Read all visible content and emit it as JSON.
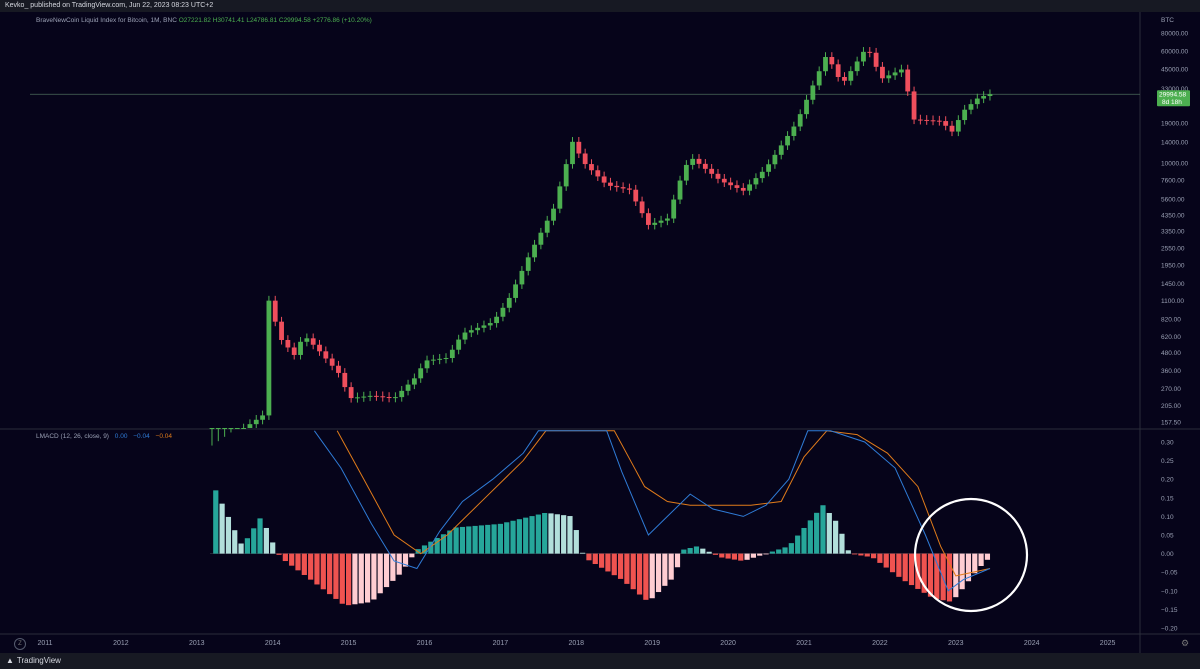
{
  "header": {
    "publisher": "Kevko_ published on TradingView.com, Jun 22, 2023 08:23 UTC+2"
  },
  "legend": {
    "symbol": "BraveNewCoin Liquid Index for Bitcoin, 1M, BNC",
    "open": "O27221.82",
    "high": "H30741.41",
    "low": "L24786.81",
    "close": "C29994.58",
    "change": "+2776.86 (+10.20%)"
  },
  "price_tag": {
    "value": "29994.58",
    "countdown": "8d 18h"
  },
  "currency": "BTC",
  "macd_legend": {
    "name": "LMACD (12, 26, close, 9)",
    "v1": "0.00",
    "v2": "−0.04",
    "v3": "−0.04"
  },
  "footer": {
    "brand": "TradingView"
  },
  "colors": {
    "bull": "#4caf50",
    "bear": "#ef4f5d",
    "hist_up_strong": "#26a69a",
    "hist_up_weak": "#b2dfdb",
    "hist_dn_strong": "#ef5350",
    "hist_dn_weak": "#ffcdd2",
    "macd": "#2f7bd6",
    "signal": "#e07b1a"
  },
  "chart_data": [
    {
      "type": "candlestick",
      "scale": "log",
      "x_axis": [
        "2011",
        "2012",
        "2013",
        "2014",
        "2015",
        "2016",
        "2017",
        "2018",
        "2019",
        "2020",
        "2021",
        "2022",
        "2023",
        "2024",
        "2025"
      ],
      "y_ticks": [
        "80000.00",
        "60000.00",
        "45000.00",
        "33000.00",
        "19000.00",
        "14000.00",
        "10000.00",
        "7600.00",
        "5600.00",
        "4350.00",
        "3350.00",
        "2550.00",
        "1950.00",
        "1450.00",
        "1100.00",
        "820.00",
        "620.00",
        "480.00",
        "360.00",
        "270.00",
        "205.00",
        "157.50"
      ],
      "last_price": 29994.58
    },
    {
      "type": "bar",
      "name": "LMACD (12, 26, close, 9)",
      "y_ticks": [
        "0.30",
        "0.25",
        "0.20",
        "0.15",
        "0.10",
        "0.05",
        "0.00",
        "−0.05",
        "−0.10",
        "−0.15",
        "−0.20"
      ],
      "ylim": [
        -0.2,
        0.3
      ],
      "annotation": "circle around current histogram"
    }
  ]
}
